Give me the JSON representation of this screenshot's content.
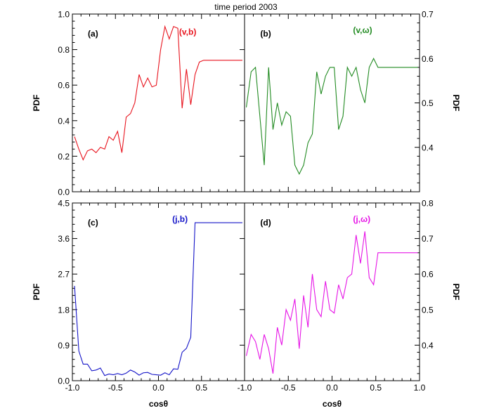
{
  "title": "time period 2003",
  "chart_data": [
    {
      "panel": "(a)",
      "type": "line",
      "label": "(v,b)",
      "color": "#e8141e",
      "xlabel": "",
      "ylabel": "PDF",
      "ylabel_side": "left",
      "xlim": [
        -1.0,
        1.0
      ],
      "ylim": [
        0.0,
        1.0
      ],
      "yticks": [
        0.0,
        0.2,
        0.4,
        0.6,
        0.8,
        1.0
      ],
      "ytick_labels": [
        "0.0",
        "0.2",
        "0.4",
        "0.6",
        "0.8",
        "1.0"
      ],
      "x": [
        -0.975,
        -0.925,
        -0.875,
        -0.825,
        -0.775,
        -0.725,
        -0.675,
        -0.625,
        -0.575,
        -0.525,
        -0.475,
        -0.425,
        -0.375,
        -0.325,
        -0.275,
        -0.225,
        -0.175,
        -0.125,
        -0.075,
        -0.025,
        0.025,
        0.075,
        0.125,
        0.175,
        0.225,
        0.275,
        0.325,
        0.375,
        0.425,
        0.475,
        0.525,
        0.575,
        0.625,
        0.675,
        0.725,
        0.775,
        0.825,
        0.875,
        0.925,
        0.975
      ],
      "values": [
        0.31,
        0.24,
        0.18,
        0.23,
        0.24,
        0.22,
        0.25,
        0.24,
        0.31,
        0.29,
        0.34,
        0.22,
        0.42,
        0.44,
        0.5,
        0.66,
        0.59,
        0.64,
        0.59,
        0.6,
        0.8,
        0.93,
        0.86,
        0.93,
        0.92,
        0.47,
        0.69,
        0.49,
        0.66,
        0.73,
        0.74,
        0.74,
        0.74,
        0.74,
        0.74,
        0.74,
        0.74,
        0.74,
        0.74,
        0.74
      ]
    },
    {
      "panel": "(b)",
      "type": "line",
      "label": "(v,ω)",
      "color": "#228b22",
      "xlabel": "",
      "ylabel": "PDF",
      "ylabel_side": "right",
      "xlim": [
        -1.0,
        1.0
      ],
      "ylim": [
        0.3,
        0.7
      ],
      "yticks": [
        0.3,
        0.4,
        0.5,
        0.6,
        0.7
      ],
      "ytick_labels": [
        "",
        "0.4",
        "0.5",
        "0.6",
        "0.7"
      ],
      "x": [
        -0.98,
        -0.925,
        -0.875,
        -0.825,
        -0.775,
        -0.725,
        -0.675,
        -0.625,
        -0.575,
        -0.525,
        -0.475,
        -0.425,
        -0.375,
        -0.325,
        -0.275,
        -0.225,
        -0.175,
        -0.125,
        -0.075,
        -0.025,
        0.025,
        0.075,
        0.125,
        0.175,
        0.225,
        0.275,
        0.325,
        0.375,
        0.425,
        0.475,
        0.525,
        0.575,
        0.625,
        0.675,
        0.725,
        0.775,
        0.825,
        0.875,
        0.925,
        0.98
      ],
      "values": [
        0.49,
        0.57,
        0.58,
        0.47,
        0.36,
        0.58,
        0.44,
        0.5,
        0.45,
        0.48,
        0.47,
        0.36,
        0.34,
        0.36,
        0.41,
        0.43,
        0.57,
        0.52,
        0.56,
        0.58,
        0.58,
        0.44,
        0.47,
        0.58,
        0.56,
        0.58,
        0.53,
        0.5,
        0.58,
        0.6,
        0.58,
        0.58,
        0.58,
        0.58,
        0.58,
        0.58,
        0.58,
        0.58,
        0.58,
        0.58
      ]
    },
    {
      "panel": "(c)",
      "type": "line",
      "label": "(j,b)",
      "color": "#1414c8",
      "xlabel": "cosθ",
      "ylabel": "PDF",
      "ylabel_side": "left",
      "xlim": [
        -1.0,
        1.0
      ],
      "ylim": [
        0.0,
        4.5
      ],
      "yticks": [
        0.0,
        0.9,
        1.8,
        2.7,
        3.6,
        4.5
      ],
      "ytick_labels": [
        "0.0",
        "0.9",
        "1.8",
        "2.7",
        "3.6",
        "4.5"
      ],
      "xticks": [
        -1.0,
        -0.5,
        0.0,
        0.5,
        1.0
      ],
      "xtick_labels": [
        "-1.0",
        "-0.5",
        "0.0",
        "0.5",
        ""
      ],
      "x": [
        -0.975,
        -0.925,
        -0.875,
        -0.825,
        -0.775,
        -0.725,
        -0.675,
        -0.625,
        -0.575,
        -0.525,
        -0.475,
        -0.425,
        -0.375,
        -0.325,
        -0.275,
        -0.225,
        -0.175,
        -0.125,
        -0.075,
        -0.025,
        0.025,
        0.075,
        0.125,
        0.175,
        0.225,
        0.275,
        0.325,
        0.375,
        0.425,
        0.475,
        0.525,
        0.575,
        0.625,
        0.675,
        0.725,
        0.775,
        0.825,
        0.875,
        0.925,
        0.975
      ],
      "values": [
        2.4,
        0.75,
        0.42,
        0.42,
        0.25,
        0.27,
        0.32,
        0.13,
        0.17,
        0.15,
        0.18,
        0.15,
        0.19,
        0.27,
        0.22,
        0.14,
        0.2,
        0.21,
        0.16,
        0.15,
        0.14,
        0.2,
        0.15,
        0.3,
        0.29,
        0.72,
        0.82,
        1.1,
        4.0,
        4.0,
        4.0,
        4.0,
        4.0,
        4.0,
        4.0,
        4.0,
        4.0,
        4.0,
        4.0,
        4.0
      ]
    },
    {
      "panel": "(d)",
      "type": "line",
      "label": "(j,ω)",
      "color": "#e614e6",
      "xlabel": "cosθ",
      "ylabel": "PDF",
      "ylabel_side": "right",
      "xlim": [
        -1.0,
        1.0
      ],
      "ylim": [
        0.3,
        0.8
      ],
      "yticks": [
        0.3,
        0.4,
        0.5,
        0.6,
        0.7,
        0.8
      ],
      "ytick_labels": [
        "",
        "0.4",
        "0.5",
        "0.6",
        "0.7",
        "0.8"
      ],
      "xticks": [
        -1.0,
        -0.5,
        0.0,
        0.5,
        1.0
      ],
      "xtick_labels": [
        "-1.0",
        "-0.5",
        "0.0",
        "0.5",
        "1.0"
      ],
      "x": [
        -0.98,
        -0.925,
        -0.875,
        -0.825,
        -0.775,
        -0.725,
        -0.675,
        -0.625,
        -0.575,
        -0.525,
        -0.475,
        -0.425,
        -0.375,
        -0.325,
        -0.275,
        -0.225,
        -0.175,
        -0.125,
        -0.075,
        -0.025,
        0.025,
        0.075,
        0.125,
        0.175,
        0.225,
        0.275,
        0.325,
        0.375,
        0.425,
        0.475,
        0.525,
        0.575,
        0.625,
        0.675,
        0.725,
        0.775,
        0.825,
        0.875,
        0.925,
        0.98
      ],
      "values": [
        0.37,
        0.43,
        0.41,
        0.36,
        0.43,
        0.39,
        0.32,
        0.45,
        0.4,
        0.5,
        0.47,
        0.53,
        0.39,
        0.54,
        0.45,
        0.6,
        0.5,
        0.48,
        0.58,
        0.5,
        0.49,
        0.57,
        0.53,
        0.59,
        0.6,
        0.71,
        0.63,
        0.72,
        0.59,
        0.57,
        0.66,
        0.66,
        0.66,
        0.66,
        0.66,
        0.66,
        0.66,
        0.66,
        0.66,
        0.66
      ]
    }
  ]
}
